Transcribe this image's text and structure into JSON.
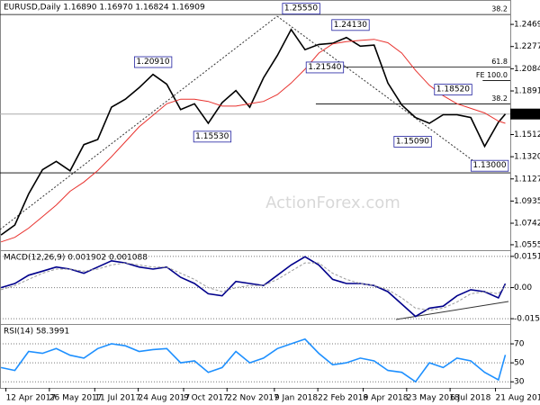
{
  "chart_data": [
    {
      "type": "line",
      "title": "EURUSD,Daily  1.16890 1.16970 1.16824 1.16909",
      "watermark": "ActionForex.com",
      "x": [
        "2017-04-07",
        "2017-04-21",
        "2017-05-05",
        "2017-05-19",
        "2017-06-02",
        "2017-06-16",
        "2017-06-30",
        "2017-07-14",
        "2017-07-28",
        "2017-08-11",
        "2017-08-25",
        "2017-09-08",
        "2017-09-22",
        "2017-10-06",
        "2017-10-20",
        "2017-11-03",
        "2017-11-17",
        "2017-12-01",
        "2017-12-15",
        "2017-12-29",
        "2018-01-12",
        "2018-01-26",
        "2018-02-09",
        "2018-02-23",
        "2018-03-09",
        "2018-03-23",
        "2018-04-06",
        "2018-04-20",
        "2018-05-04",
        "2018-05-18",
        "2018-06-01",
        "2018-06-15",
        "2018-06-29",
        "2018-07-13",
        "2018-07-27",
        "2018-08-10",
        "2018-08-24",
        "2018-08-31"
      ],
      "series": [
        {
          "name": "EURUSD",
          "color": "#000000",
          "values": [
            1.064,
            1.0727,
            1.0997,
            1.1207,
            1.128,
            1.1198,
            1.1425,
            1.147,
            1.175,
            1.182,
            1.192,
            1.2035,
            1.195,
            1.173,
            1.178,
            1.161,
            1.179,
            1.1895,
            1.175,
            1.2005,
            1.22,
            1.2425,
            1.225,
            1.2295,
            1.2305,
            1.2355,
            1.228,
            1.229,
            1.196,
            1.177,
            1.166,
            1.161,
            1.1685,
            1.1685,
            1.166,
            1.141,
            1.162,
            1.16909
          ]
        },
        {
          "name": "MA",
          "color": "#e8322e",
          "values": [
            1.058,
            1.062,
            1.07,
            1.08,
            1.09,
            1.102,
            1.11,
            1.12,
            1.132,
            1.145,
            1.158,
            1.168,
            1.178,
            1.182,
            1.182,
            1.18,
            1.176,
            1.176,
            1.178,
            1.18,
            1.186,
            1.196,
            1.208,
            1.222,
            1.23,
            1.232,
            1.233,
            1.234,
            1.231,
            1.222,
            1.207,
            1.194,
            1.185,
            1.178,
            1.174,
            1.17,
            1.163,
            1.161
          ]
        }
      ],
      "xlim": [
        "2017-04-06",
        "2018-09-05"
      ],
      "xticks": [
        {
          "value": "2017-04-12",
          "label": "12 Apr 2017"
        },
        {
          "value": "2017-05-26",
          "label": "26 May 2017"
        },
        {
          "value": "2017-07-11",
          "label": "11 Jul 2017"
        },
        {
          "value": "2017-08-24",
          "label": "24 Aug 2017"
        },
        {
          "value": "2017-10-09",
          "label": "9 Oct 2017"
        },
        {
          "value": "2017-11-22",
          "label": "22 Nov 2017"
        },
        {
          "value": "2018-01-09",
          "label": "9 Jan 2018"
        },
        {
          "value": "2018-02-22",
          "label": "22 Feb 2018"
        },
        {
          "value": "2018-04-09",
          "label": "9 Apr 2018"
        },
        {
          "value": "2018-05-23",
          "label": "23 May 2018"
        },
        {
          "value": "2018-07-06",
          "label": "6 Jul 2018"
        },
        {
          "value": "2018-08-21",
          "label": "21 Aug 2018"
        }
      ],
      "ylim": [
        1.0516,
        1.265
      ],
      "yticks": [
        1.24695,
        {
          "value": 1.2277,
          "label": "1.22770"
        },
        1.20845,
        1.18915,
        1.15125,
        {
          "value": 1.132,
          "label": "1.13200"
        },
        1.11275,
        {
          "value": 1.0935,
          "label": "1.09350"
        },
        1.07425,
        1.05555
      ],
      "last": 1.16909,
      "grid": false,
      "annotations": [
        {
          "label": "1.25550",
          "date": "2018-02-05",
          "value": 1.2555
        },
        {
          "label": "1.24130",
          "date": "2018-03-27",
          "value": 1.2413
        },
        {
          "label": "1.21540",
          "date": "2018-03-01",
          "value": 1.2154
        },
        {
          "label": "1.20910",
          "date": "2017-09-08",
          "value": 1.2091
        },
        {
          "label": "1.15530",
          "date": "2017-11-07",
          "value": 1.1553
        },
        {
          "label": "1.15090",
          "date": "2018-05-29",
          "value": 1.1509
        },
        {
          "label": "1.18520",
          "date": "2018-07-09",
          "value": 1.1852
        },
        {
          "label": "1.13000",
          "date": "2018-08-15",
          "value": 1.13
        }
      ],
      "levels": [
        {
          "label": "38.2",
          "value": 1.2555,
          "from": "2017-04-06"
        },
        {
          "label": "61.8",
          "value": 1.21,
          "from": "2018-02-20"
        },
        {
          "label": "FE 100.0",
          "value": 1.1982,
          "from": "2018-08-08"
        },
        {
          "label": "38.2",
          "value": 1.1778,
          "from": "2018-02-20"
        },
        {
          "label": "61.8",
          "value": 1.118,
          "from": "2017-04-06"
        }
      ]
    },
    {
      "type": "line",
      "title": "MACD(12,26,9) 0.001902 0.001088",
      "series": [
        {
          "name": "MACD",
          "color": "#00008b",
          "values": [
            0.0,
            0.002,
            0.006,
            0.008,
            0.01,
            0.009,
            0.007,
            0.01,
            0.013,
            0.012,
            0.01,
            0.009,
            0.01,
            0.005,
            0.002,
            -0.003,
            -0.004,
            0.003,
            0.002,
            0.001,
            0.006,
            0.011,
            0.015,
            0.011,
            0.004,
            0.002,
            0.002,
            0.001,
            -0.002,
            -0.008,
            -0.014,
            -0.01,
            -0.009,
            -0.004,
            -0.001,
            -0.002,
            -0.005,
            0.001902
          ]
        },
        {
          "name": "Signal",
          "color": "#9a9a9a",
          "values": [
            -0.001,
            0.001,
            0.004,
            0.007,
            0.009,
            0.009,
            0.008,
            0.009,
            0.011,
            0.012,
            0.011,
            0.01,
            0.01,
            0.007,
            0.004,
            0.0,
            -0.002,
            0.0,
            0.001,
            0.001,
            0.004,
            0.008,
            0.012,
            0.012,
            0.007,
            0.004,
            0.002,
            0.001,
            -0.001,
            -0.005,
            -0.01,
            -0.011,
            -0.01,
            -0.007,
            -0.003,
            -0.002,
            -0.003,
            0.001088
          ]
        }
      ],
      "ylim": [
        -0.0168,
        0.0173
      ],
      "yticks": [
        0.01517,
        {
          "value": 0,
          "label": "0.00"
        },
        {
          "value": -0.0151,
          "label": "-0.01510"
        }
      ],
      "grid": true
    },
    {
      "type": "line",
      "title": "RSI(14) 58.3991",
      "series": [
        {
          "name": "RSI",
          "color": "#1e90ff",
          "values": [
            45,
            42,
            62,
            60,
            65,
            58,
            55,
            65,
            70,
            68,
            62,
            64,
            65,
            50,
            52,
            40,
            45,
            62,
            50,
            55,
            65,
            70,
            75,
            60,
            48,
            50,
            55,
            52,
            42,
            40,
            30,
            50,
            45,
            55,
            52,
            40,
            32,
            58.3991
          ]
        }
      ],
      "ylim": [
        23.6,
        89
      ],
      "yticks": [
        70,
        50,
        30
      ],
      "grid": true
    }
  ]
}
